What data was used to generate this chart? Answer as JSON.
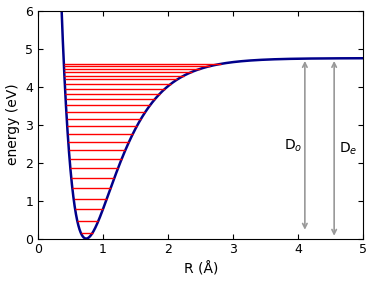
{
  "xlabel": "R (Å)",
  "ylabel": "energy (eV)",
  "xlim": [
    0.0,
    5.0
  ],
  "ylim": [
    0.0,
    6.0
  ],
  "De": 4.747,
  "re": 0.74,
  "a": 2.0,
  "r_start": 0.3,
  "curve_color": "#00008B",
  "curve_lw": 1.8,
  "hline_color": "#FF0000",
  "hline_lw": 1.0,
  "arrow_color": "#999999",
  "background_color": "#ffffff",
  "tick_label_size": 9,
  "axis_label_size": 10,
  "Do_x": 4.1,
  "De_x": 4.55,
  "annotation_fontsize": 10,
  "omega_e": 0.32,
  "omega_xe": 0.0054,
  "n_levels_max": 25,
  "xticks": [
    0.0,
    1.0,
    2.0,
    3.0,
    4.0,
    5.0
  ],
  "yticks": [
    0.0,
    1.0,
    2.0,
    3.0,
    4.0,
    5.0,
    6.0
  ]
}
